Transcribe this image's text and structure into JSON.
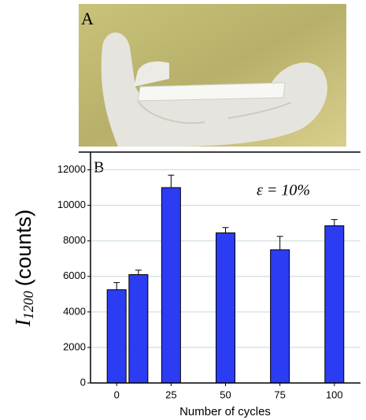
{
  "chart_data": {
    "type": "bar",
    "panel_a_label": "A",
    "panel_b_label": "B",
    "annotation": "ε = 10%",
    "x_label": "Number of cycles",
    "y_label_symbol": "I",
    "y_label_subscript": "1200",
    "y_label_unit": "(counts)",
    "x": [
      0,
      10,
      25,
      50,
      75,
      100
    ],
    "values": [
      5250,
      6100,
      11000,
      8450,
      7500,
      8850
    ],
    "errors": [
      400,
      250,
      700,
      300,
      750,
      350
    ],
    "color": "#2b3cf2",
    "xlim": [
      -12,
      112
    ],
    "xticks": [
      0,
      25,
      50,
      75,
      100
    ],
    "ylim": [
      0,
      13000
    ],
    "yticks": [
      0,
      2000,
      4000,
      6000,
      8000,
      10000,
      12000
    ],
    "grid": true
  }
}
